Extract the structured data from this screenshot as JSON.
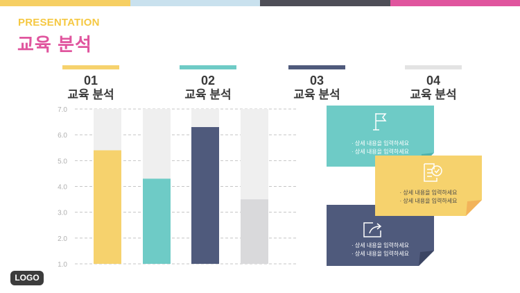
{
  "header": {
    "eyebrow": "PRESENTATION",
    "title": "교육 분석",
    "top_bar_colors": [
      "#f6cf63",
      "#c9e1ee",
      "#4e4e57",
      "#e0559e"
    ]
  },
  "columns": [
    {
      "num": "01",
      "label": "교육 분석",
      "color": "#f6d26d"
    },
    {
      "num": "02",
      "label": "교육 분석",
      "color": "#6ecbc6"
    },
    {
      "num": "03",
      "label": "교육 분석",
      "color": "#4f5a7c"
    },
    {
      "num": "04",
      "label": "교육 분석",
      "color": "#e3e3e3"
    }
  ],
  "chart_data": {
    "type": "bar",
    "categories": [
      "01",
      "02",
      "03",
      "04"
    ],
    "values": [
      5.4,
      4.3,
      6.3,
      3.5
    ],
    "ylim": [
      1.0,
      7.0
    ],
    "yticks": [
      "1.0",
      "2.0",
      "3.0",
      "4.0",
      "5.0",
      "6.0",
      "7.0"
    ],
    "colors": [
      "#f6d26d",
      "#6ecbc6",
      "#4f5a7c",
      "#d9d9db"
    ],
    "track_color": "#efefef",
    "grid": true
  },
  "notes": [
    {
      "icon": "flag-icon",
      "color": "#6ecbc6",
      "text_color": "#ffffff",
      "lines": [
        "· 상세 내용을 입력하세요",
        "· 상세 내용을 입력하세요"
      ]
    },
    {
      "icon": "document-check-icon",
      "color": "#f6d26d",
      "text_color": "#4a4a4a",
      "lines": [
        "· 상세 내용을 입력하세요",
        "· 상세 내용을 입력하세요"
      ]
    },
    {
      "icon": "share-arrow-icon",
      "color": "#4f5a7c",
      "text_color": "#ffffff",
      "lines": [
        "· 상세 내용을 입력하세요",
        "· 상세 내용을 입력하세요"
      ]
    }
  ],
  "logo": "LOGO"
}
